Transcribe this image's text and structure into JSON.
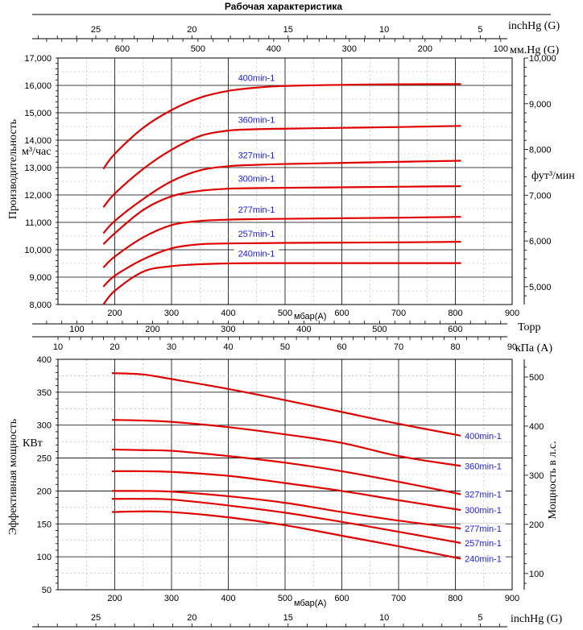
{
  "title": "Рабочая характеристика",
  "colors": {
    "curve": "#e00000",
    "label": "#1a1aff"
  },
  "top_scales": {
    "inchHg_label": "inchHg (G)",
    "inchHg_ticks": [
      "25",
      "20",
      "15",
      "10",
      "5"
    ],
    "mmHg_label": "мм.Hg (G)",
    "mmHg_ticks": [
      "600",
      "500",
      "400",
      "300",
      "200",
      "100"
    ]
  },
  "middle_scales": {
    "mbar_label": "мбар(A)",
    "mbar_ticks": [
      "200",
      "300",
      "400",
      "500",
      "600",
      "700",
      "800",
      "900"
    ],
    "torr_label": "Торр",
    "torr_ticks": [
      "100",
      "200",
      "300",
      "400",
      "500",
      "600"
    ],
    "kpa_label": "кПа (A)",
    "kpa_ticks": [
      "10",
      "20",
      "30",
      "40",
      "50",
      "60",
      "70",
      "80",
      "90"
    ]
  },
  "bottom_scales": {
    "mbar_label": "мбар(A)",
    "mbar_ticks": [
      "200",
      "300",
      "400",
      "500",
      "600",
      "700",
      "800",
      "900"
    ],
    "inchHg_label": "inchHg (G)",
    "inchHg_ticks": [
      "25",
      "20",
      "15",
      "10",
      "5"
    ]
  },
  "chart_data": [
    {
      "type": "line",
      "title": "",
      "xlabel": "мбар(A)",
      "ylabel": "Производительность",
      "yunit": "м³/час",
      "y2label": "фут³/мин",
      "xlim": [
        100,
        900
      ],
      "ylim": [
        8000,
        17000
      ],
      "y2lim": [
        4610,
        10000
      ],
      "y_ticks": [
        "8,000",
        "9,000",
        "10,000",
        "11,000",
        "12,000",
        "13,000",
        "14,000",
        "15,000",
        "16,000",
        "17,000"
      ],
      "y2_ticks": [
        "5,000",
        "6,000",
        "7,000",
        "8,000",
        "9,000",
        "10,000"
      ],
      "series": [
        {
          "name": "400min-1",
          "x": [
            180,
            200,
            250,
            300,
            350,
            400,
            450,
            500,
            600,
            700,
            810
          ],
          "y": [
            12950,
            13500,
            14450,
            15100,
            15550,
            15800,
            15920,
            15980,
            16020,
            16040,
            16050
          ]
        },
        {
          "name": "360min-1",
          "x": [
            180,
            200,
            250,
            300,
            350,
            400,
            450,
            500,
            600,
            700,
            810
          ],
          "y": [
            11550,
            12050,
            12950,
            13650,
            14150,
            14350,
            14400,
            14420,
            14450,
            14480,
            14520
          ]
        },
        {
          "name": "327min-1",
          "x": [
            180,
            200,
            250,
            300,
            350,
            400,
            450,
            500,
            600,
            700,
            810
          ],
          "y": [
            10600,
            11050,
            11850,
            12500,
            12900,
            13050,
            13100,
            13130,
            13170,
            13210,
            13250
          ]
        },
        {
          "name": "300min-1",
          "x": [
            180,
            200,
            250,
            300,
            350,
            400,
            450,
            500,
            600,
            700,
            810
          ],
          "y": [
            10200,
            10600,
            11450,
            11950,
            12150,
            12230,
            12250,
            12260,
            12280,
            12300,
            12320
          ]
        },
        {
          "name": "277min-1",
          "x": [
            180,
            200,
            250,
            300,
            350,
            400,
            450,
            500,
            600,
            700,
            810
          ],
          "y": [
            9350,
            9750,
            10450,
            10900,
            11050,
            11100,
            11120,
            11130,
            11150,
            11170,
            11200
          ]
        },
        {
          "name": "257min-1",
          "x": [
            180,
            200,
            250,
            300,
            350,
            400,
            450,
            500,
            600,
            700,
            810
          ],
          "y": [
            8650,
            9050,
            9650,
            10050,
            10200,
            10230,
            10240,
            10250,
            10260,
            10270,
            10290
          ]
        },
        {
          "name": "240min-1",
          "x": [
            180,
            200,
            250,
            300,
            350,
            400,
            450,
            500,
            600,
            700,
            810
          ],
          "y": [
            8000,
            8500,
            9200,
            9400,
            9470,
            9500,
            9510,
            9510,
            9510,
            9510,
            9510
          ]
        }
      ]
    },
    {
      "type": "line",
      "title": "",
      "xlabel": "мбар(A)",
      "ylabel": "Эффективная мощность",
      "yunit": "КВт",
      "y2label": "Мощность в л.с.",
      "xlim": [
        100,
        900
      ],
      "ylim": [
        50,
        400
      ],
      "y2lim": [
        67,
        536
      ],
      "y_ticks": [
        "50",
        "100",
        "150",
        "200",
        "250",
        "300",
        "350",
        "400"
      ],
      "y2_ticks": [
        "100",
        "200",
        "300",
        "400",
        "500"
      ],
      "series": [
        {
          "name": "400min-1",
          "x": [
            195,
            250,
            300,
            400,
            500,
            600,
            700,
            810
          ],
          "y": [
            379,
            377,
            370,
            355,
            338,
            320,
            302,
            284
          ]
        },
        {
          "name": "360min-1",
          "x": [
            195,
            250,
            300,
            400,
            500,
            600,
            700,
            810
          ],
          "y": [
            308,
            307,
            305,
            297,
            286,
            273,
            253,
            238
          ]
        },
        {
          "name": "327min-1",
          "x": [
            195,
            250,
            300,
            400,
            500,
            600,
            700,
            810
          ],
          "y": [
            263,
            262,
            261,
            253,
            243,
            230,
            214,
            195
          ]
        },
        {
          "name": "300min-1",
          "x": [
            195,
            250,
            300,
            400,
            500,
            600,
            700,
            810
          ],
          "y": [
            230,
            230,
            229,
            223,
            212,
            200,
            186,
            171
          ]
        },
        {
          "name": "277min-1",
          "x": [
            195,
            250,
            300,
            400,
            500,
            600,
            700,
            810
          ],
          "y": [
            200,
            200,
            199,
            192,
            182,
            168,
            155,
            143
          ]
        },
        {
          "name": "257min-1",
          "x": [
            195,
            250,
            300,
            400,
            500,
            600,
            700,
            810
          ],
          "y": [
            188,
            188,
            187,
            178,
            167,
            153,
            138,
            121
          ]
        },
        {
          "name": "240min-1",
          "x": [
            195,
            250,
            300,
            400,
            500,
            600,
            700,
            810
          ],
          "y": [
            168,
            169,
            168,
            160,
            148,
            132,
            116,
            97
          ]
        }
      ]
    }
  ]
}
